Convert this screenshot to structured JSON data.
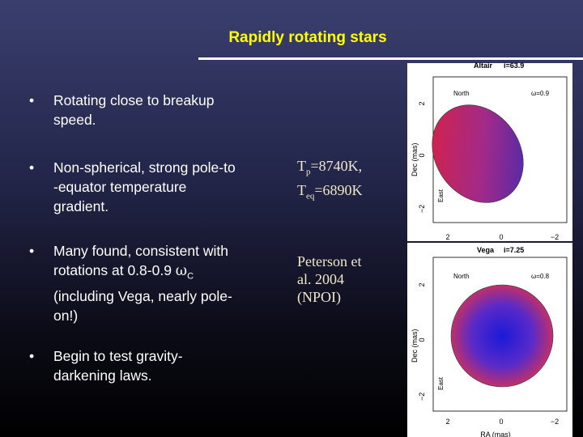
{
  "title": "Rapidly rotating stars",
  "bullets": [
    {
      "lines": [
        "Rotating close to breakup",
        "speed."
      ]
    },
    {
      "lines": [
        "Non-spherical, strong pole-to",
        "-equator temperature",
        "gradient."
      ]
    },
    {
      "lines": [
        "Many found, consistent with",
        {
          "text": "rotations at 0.8-0.9 ",
          "symbol": "ω",
          "sub": "C"
        },
        "(including Vega, nearly pole-",
        "on!)"
      ]
    },
    {
      "lines": [
        "Begin to test gravity-",
        "darkening laws."
      ]
    }
  ],
  "temperatures": [
    {
      "symbol": "T",
      "sub": "p",
      "text": "=8740K,"
    },
    {
      "symbol": "T",
      "sub": "eq",
      "text": "=6890K"
    }
  ],
  "reference": [
    "Peterson et",
    "al. 2004",
    "(NPOI)"
  ],
  "panels": [
    {
      "star": "Altair",
      "inclination": "i=63.9",
      "north": "North",
      "omega": "ω=0.9",
      "east": "East",
      "ylabel": "Dec (mas)",
      "yticks": [
        "2",
        "0",
        "−2"
      ],
      "xticks": [
        "2",
        "0",
        "−2"
      ]
    },
    {
      "star": "Vega",
      "inclination": "i=7.25",
      "north": "North",
      "omega": "ω=0.8",
      "east": "East",
      "ylabel": "Dec (mas)",
      "yticks": [
        "2",
        "0",
        "−2"
      ],
      "xticks": [
        "2",
        "0",
        "−2"
      ],
      "xlabel": "RA (mas)"
    }
  ]
}
